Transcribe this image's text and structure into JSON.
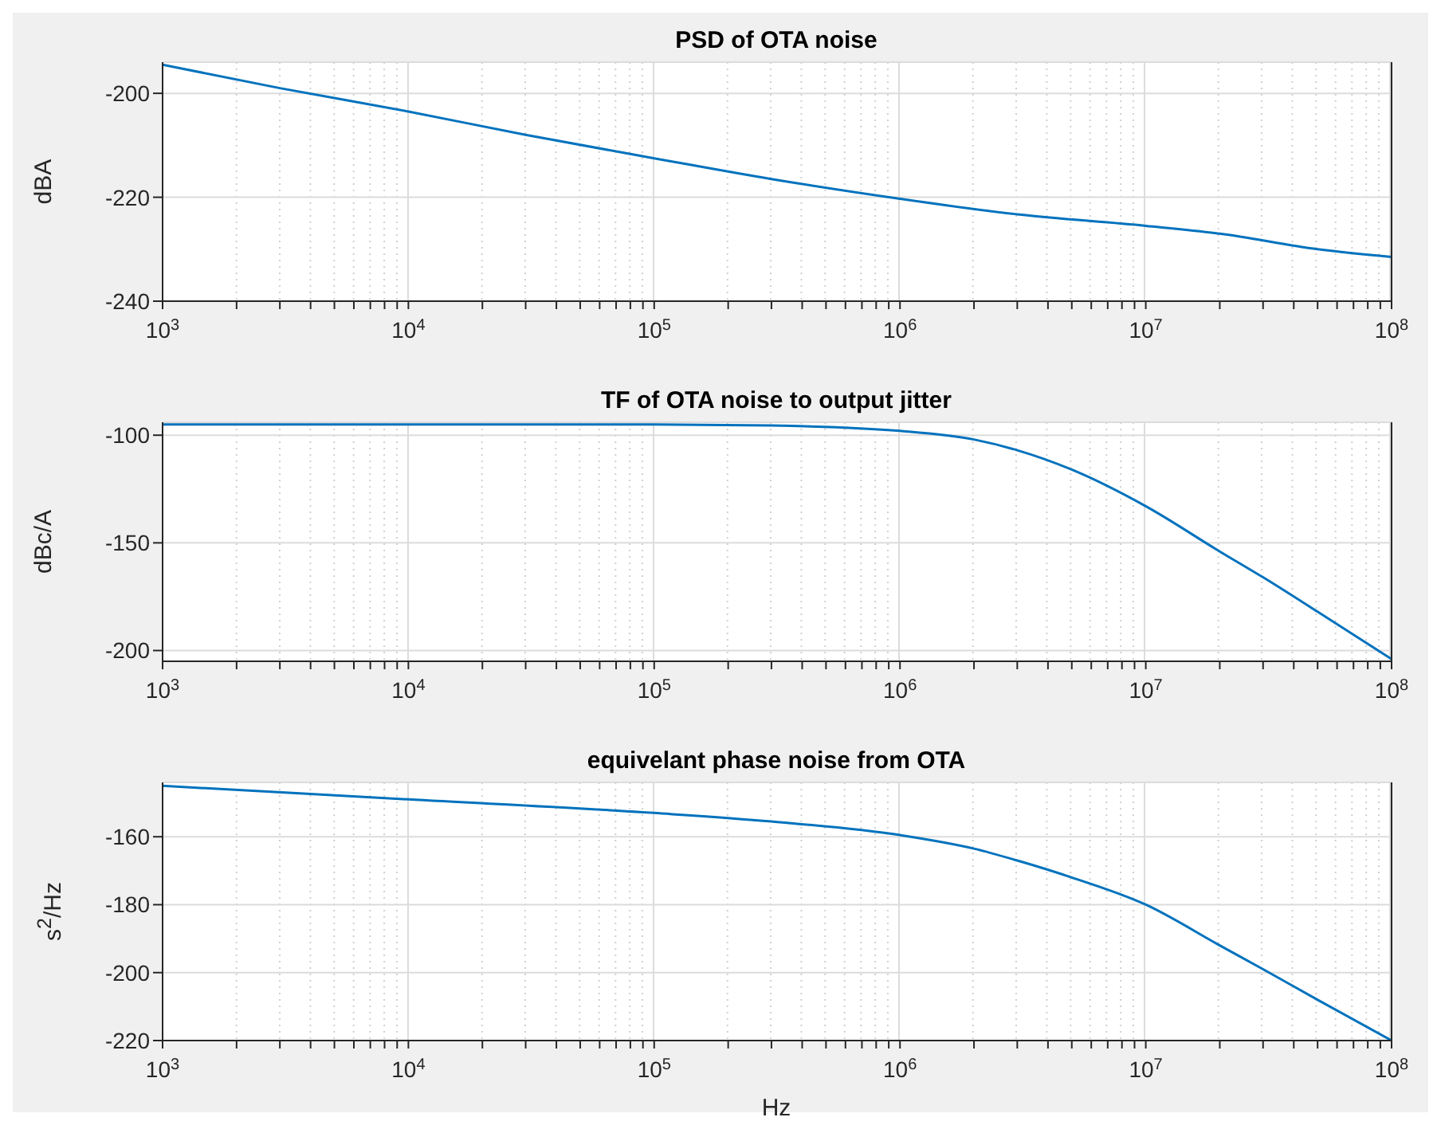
{
  "chart_data": [
    {
      "type": "line",
      "title": "PSD of OTA noise",
      "ylabel": "dBA",
      "log": "x",
      "grid": true,
      "xlim": [
        1000,
        100000000
      ],
      "ylim": [
        -240,
        -194
      ],
      "yticks": [
        -240,
        -220,
        -200
      ],
      "xticks": [
        {
          "value": 1000,
          "label": "10$^{3}$"
        },
        {
          "value": 2000,
          "label": null
        },
        {
          "value": 3000,
          "label": null
        },
        {
          "value": 4000,
          "label": null
        },
        {
          "value": 5000,
          "label": null
        },
        {
          "value": 6000,
          "label": null
        },
        {
          "value": 7000,
          "label": null
        },
        {
          "value": 8000,
          "label": null
        },
        {
          "value": 9000,
          "label": null
        },
        {
          "value": 10000,
          "label": "10$^{4}$"
        },
        {
          "value": 20000,
          "label": null
        },
        {
          "value": 30000,
          "label": null
        },
        {
          "value": 40000,
          "label": null
        },
        {
          "value": 50000,
          "label": null
        },
        {
          "value": 60000,
          "label": null
        },
        {
          "value": 70000,
          "label": null
        },
        {
          "value": 80000,
          "label": null
        },
        {
          "value": 90000,
          "label": null
        },
        {
          "value": 100000,
          "label": "10$^{5}$"
        },
        {
          "value": 200000,
          "label": null
        },
        {
          "value": 300000,
          "label": null
        },
        {
          "value": 400000,
          "label": null
        },
        {
          "value": 500000,
          "label": null
        },
        {
          "value": 600000,
          "label": null
        },
        {
          "value": 700000,
          "label": null
        },
        {
          "value": 800000,
          "label": null
        },
        {
          "value": 900000,
          "label": null
        },
        {
          "value": 1000000,
          "label": "10$^{6}$"
        },
        {
          "value": 2000000,
          "label": null
        },
        {
          "value": 3000000,
          "label": null
        },
        {
          "value": 4000000,
          "label": null
        },
        {
          "value": 5000000,
          "label": null
        },
        {
          "value": 6000000,
          "label": null
        },
        {
          "value": 7000000,
          "label": null
        },
        {
          "value": 8000000,
          "label": null
        },
        {
          "value": 9000000,
          "label": null
        },
        {
          "value": 10000000,
          "label": "10$^{7}$"
        },
        {
          "value": 20000000,
          "label": null
        },
        {
          "value": 30000000,
          "label": null
        },
        {
          "value": 40000000,
          "label": null
        },
        {
          "value": 50000000,
          "label": null
        },
        {
          "value": 60000000,
          "label": null
        },
        {
          "value": 70000000,
          "label": null
        },
        {
          "value": 80000000,
          "label": null
        },
        {
          "value": 90000000,
          "label": null
        },
        {
          "value": 100000000,
          "label": "10$^{8}$"
        }
      ],
      "x": [
        1000,
        3000,
        10000,
        30000,
        100000,
        300000,
        1000000,
        3000000,
        10000000,
        20000000,
        50000000,
        100000000
      ],
      "series": [
        {
          "color": "#0072bd",
          "values": [
            -194.5,
            -199,
            -203.5,
            -208,
            -212.5,
            -216.5,
            -220.3,
            -223.3,
            -225.5,
            -227,
            -230,
            -231.5
          ]
        }
      ]
    },
    {
      "type": "line",
      "title": "TF of OTA noise to output jitter",
      "ylabel": "dBc/A",
      "log": "x",
      "grid": true,
      "xlim": [
        1000,
        100000000
      ],
      "ylim": [
        -205,
        -94
      ],
      "yticks": [
        -200,
        -150,
        -100
      ],
      "xticks": [
        {
          "value": 1000,
          "label": "10$^{3}$"
        },
        {
          "value": 2000,
          "label": null
        },
        {
          "value": 3000,
          "label": null
        },
        {
          "value": 4000,
          "label": null
        },
        {
          "value": 5000,
          "label": null
        },
        {
          "value": 6000,
          "label": null
        },
        {
          "value": 7000,
          "label": null
        },
        {
          "value": 8000,
          "label": null
        },
        {
          "value": 9000,
          "label": null
        },
        {
          "value": 10000,
          "label": "10$^{4}$"
        },
        {
          "value": 20000,
          "label": null
        },
        {
          "value": 30000,
          "label": null
        },
        {
          "value": 40000,
          "label": null
        },
        {
          "value": 50000,
          "label": null
        },
        {
          "value": 60000,
          "label": null
        },
        {
          "value": 70000,
          "label": null
        },
        {
          "value": 80000,
          "label": null
        },
        {
          "value": 90000,
          "label": null
        },
        {
          "value": 100000,
          "label": "10$^{5}$"
        },
        {
          "value": 200000,
          "label": null
        },
        {
          "value": 300000,
          "label": null
        },
        {
          "value": 400000,
          "label": null
        },
        {
          "value": 500000,
          "label": null
        },
        {
          "value": 600000,
          "label": null
        },
        {
          "value": 700000,
          "label": null
        },
        {
          "value": 800000,
          "label": null
        },
        {
          "value": 900000,
          "label": null
        },
        {
          "value": 1000000,
          "label": "10$^{6}$"
        },
        {
          "value": 2000000,
          "label": null
        },
        {
          "value": 3000000,
          "label": null
        },
        {
          "value": 4000000,
          "label": null
        },
        {
          "value": 5000000,
          "label": null
        },
        {
          "value": 6000000,
          "label": null
        },
        {
          "value": 7000000,
          "label": null
        },
        {
          "value": 8000000,
          "label": null
        },
        {
          "value": 9000000,
          "label": null
        },
        {
          "value": 10000000,
          "label": "10$^{7}$"
        },
        {
          "value": 20000000,
          "label": null
        },
        {
          "value": 30000000,
          "label": null
        },
        {
          "value": 40000000,
          "label": null
        },
        {
          "value": 50000000,
          "label": null
        },
        {
          "value": 60000000,
          "label": null
        },
        {
          "value": 70000000,
          "label": null
        },
        {
          "value": 80000000,
          "label": null
        },
        {
          "value": 90000000,
          "label": null
        },
        {
          "value": 100000000,
          "label": "10$^{8}$"
        }
      ],
      "x": [
        1000,
        10000,
        100000,
        300000,
        1000000,
        2000000,
        3000000,
        5000000,
        10000000,
        20000000,
        30000000,
        50000000,
        100000000
      ],
      "series": [
        {
          "color": "#0072bd",
          "values": [
            -95,
            -95,
            -95,
            -95.5,
            -98,
            -102,
            -107,
            -116,
            -133,
            -154,
            -166,
            -182,
            -204
          ]
        }
      ]
    },
    {
      "type": "line",
      "title": "equivelant phase noise from OTA",
      "ylabel": "s$^{2}$/Hz",
      "xlabel": "Hz",
      "log": "x",
      "grid": true,
      "xlim": [
        1000,
        100000000
      ],
      "ylim": [
        -220,
        -144
      ],
      "yticks": [
        -220,
        -200,
        -180,
        -160
      ],
      "xticks": [
        {
          "value": 1000,
          "label": "10$^{3}$"
        },
        {
          "value": 2000,
          "label": null
        },
        {
          "value": 3000,
          "label": null
        },
        {
          "value": 4000,
          "label": null
        },
        {
          "value": 5000,
          "label": null
        },
        {
          "value": 6000,
          "label": null
        },
        {
          "value": 7000,
          "label": null
        },
        {
          "value": 8000,
          "label": null
        },
        {
          "value": 9000,
          "label": null
        },
        {
          "value": 10000,
          "label": "10$^{4}$"
        },
        {
          "value": 20000,
          "label": null
        },
        {
          "value": 30000,
          "label": null
        },
        {
          "value": 40000,
          "label": null
        },
        {
          "value": 50000,
          "label": null
        },
        {
          "value": 60000,
          "label": null
        },
        {
          "value": 70000,
          "label": null
        },
        {
          "value": 80000,
          "label": null
        },
        {
          "value": 90000,
          "label": null
        },
        {
          "value": 100000,
          "label": "10$^{5}$"
        },
        {
          "value": 200000,
          "label": null
        },
        {
          "value": 300000,
          "label": null
        },
        {
          "value": 400000,
          "label": null
        },
        {
          "value": 500000,
          "label": null
        },
        {
          "value": 600000,
          "label": null
        },
        {
          "value": 700000,
          "label": null
        },
        {
          "value": 800000,
          "label": null
        },
        {
          "value": 900000,
          "label": null
        },
        {
          "value": 1000000,
          "label": "10$^{6}$"
        },
        {
          "value": 2000000,
          "label": null
        },
        {
          "value": 3000000,
          "label": null
        },
        {
          "value": 4000000,
          "label": null
        },
        {
          "value": 5000000,
          "label": null
        },
        {
          "value": 6000000,
          "label": null
        },
        {
          "value": 7000000,
          "label": null
        },
        {
          "value": 8000000,
          "label": null
        },
        {
          "value": 9000000,
          "label": null
        },
        {
          "value": 10000000,
          "label": "10$^{7}$"
        },
        {
          "value": 20000000,
          "label": null
        },
        {
          "value": 30000000,
          "label": null
        },
        {
          "value": 40000000,
          "label": null
        },
        {
          "value": 50000000,
          "label": null
        },
        {
          "value": 60000000,
          "label": null
        },
        {
          "value": 70000000,
          "label": null
        },
        {
          "value": 80000000,
          "label": null
        },
        {
          "value": 90000000,
          "label": null
        },
        {
          "value": 100000000,
          "label": "10$^{8}$"
        }
      ],
      "x": [
        1000,
        10000,
        100000,
        300000,
        1000000,
        2000000,
        3000000,
        5000000,
        10000000,
        20000000,
        30000000,
        50000000,
        100000000
      ],
      "series": [
        {
          "color": "#0072bd",
          "values": [
            -145,
            -149,
            -153,
            -155.5,
            -159.5,
            -163.5,
            -167,
            -172,
            -180,
            -192,
            -199,
            -208,
            -220
          ]
        }
      ]
    }
  ]
}
